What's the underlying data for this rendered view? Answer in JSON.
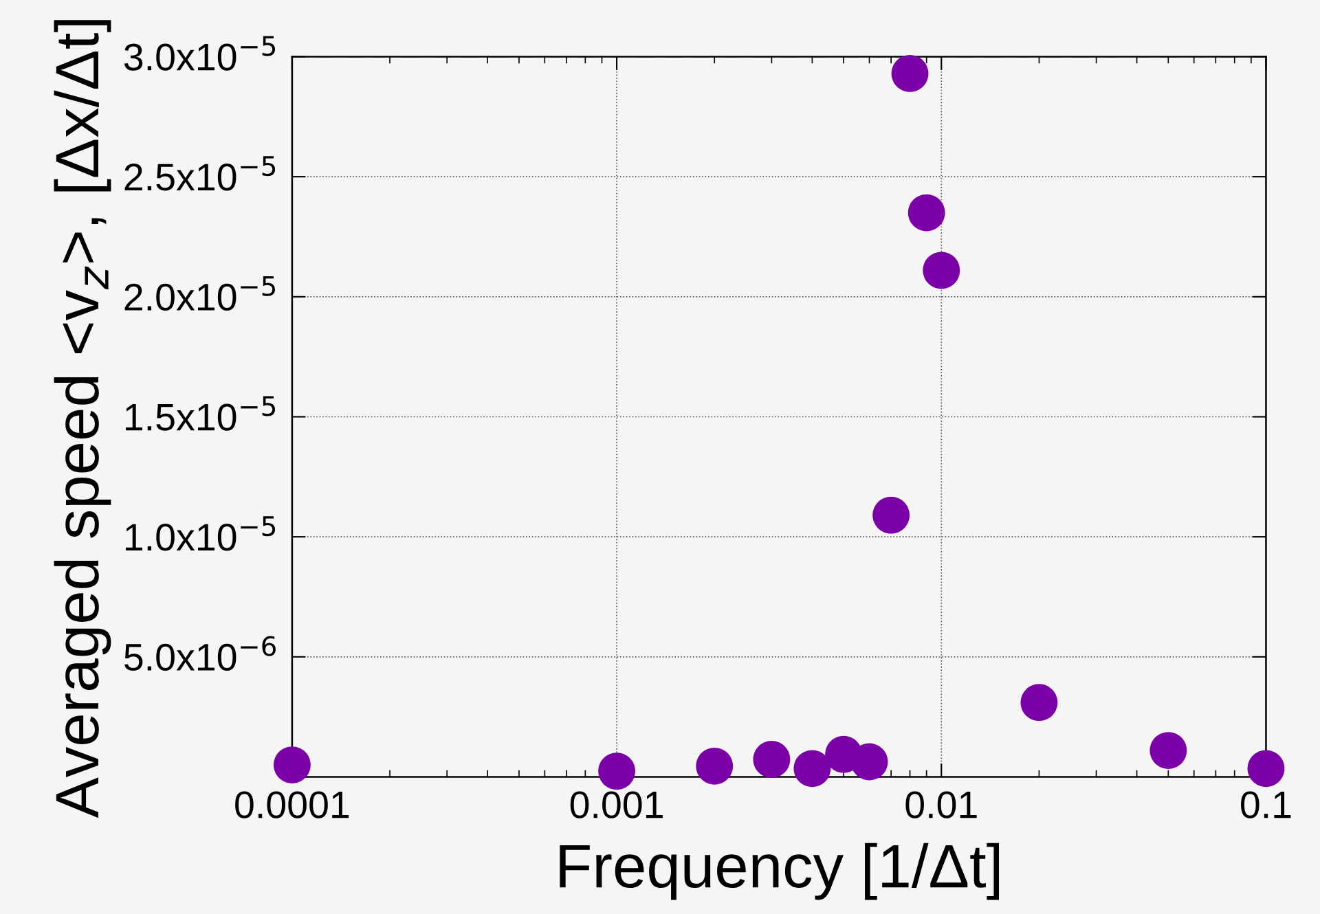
{
  "chart_data": {
    "type": "scatter",
    "xlabel": "Frequency [1/Δt]",
    "ylabel": "Averaged speed <v$_{z}$>, [Δx/Δt]",
    "x": [
      0.0001,
      0.001,
      0.002,
      0.003,
      0.004,
      0.005,
      0.006,
      0.007,
      0.008,
      0.009,
      0.01,
      0.02,
      0.05,
      0.1
    ],
    "series": [
      {
        "color": "#7b00a8",
        "values": [
          5e-07,
          2.4e-07,
          4.5e-07,
          7.3e-07,
          3.5e-07,
          9.4e-07,
          6.3e-07,
          1.09e-05,
          2.93e-05,
          2.35e-05,
          2.11e-05,
          3.1e-06,
          1.1e-06,
          3.5e-07
        ]
      }
    ],
    "log": "x",
    "xlim": [
      0.0001,
      0.1
    ],
    "ylim": [
      0,
      3e-05
    ],
    "xticks": [
      0.0001,
      0.001,
      0.01,
      0.1
    ],
    "yticks": [
      {
        "value": 5e-06,
        "label": "5.0x10$^{−6}$"
      },
      {
        "value": 1e-05,
        "label": "1.0x10$^{−5}$"
      },
      {
        "value": 1.5e-05,
        "label": "1.5x10$^{−5}$"
      },
      {
        "value": 2e-05,
        "label": "2.0x10$^{−5}$"
      },
      {
        "value": 2.5e-05,
        "label": "2.5x10$^{−5}$"
      },
      {
        "value": 3e-05,
        "label": "3.0x10$^{−5}$"
      }
    ],
    "grid": true,
    "marker": "circle"
  }
}
